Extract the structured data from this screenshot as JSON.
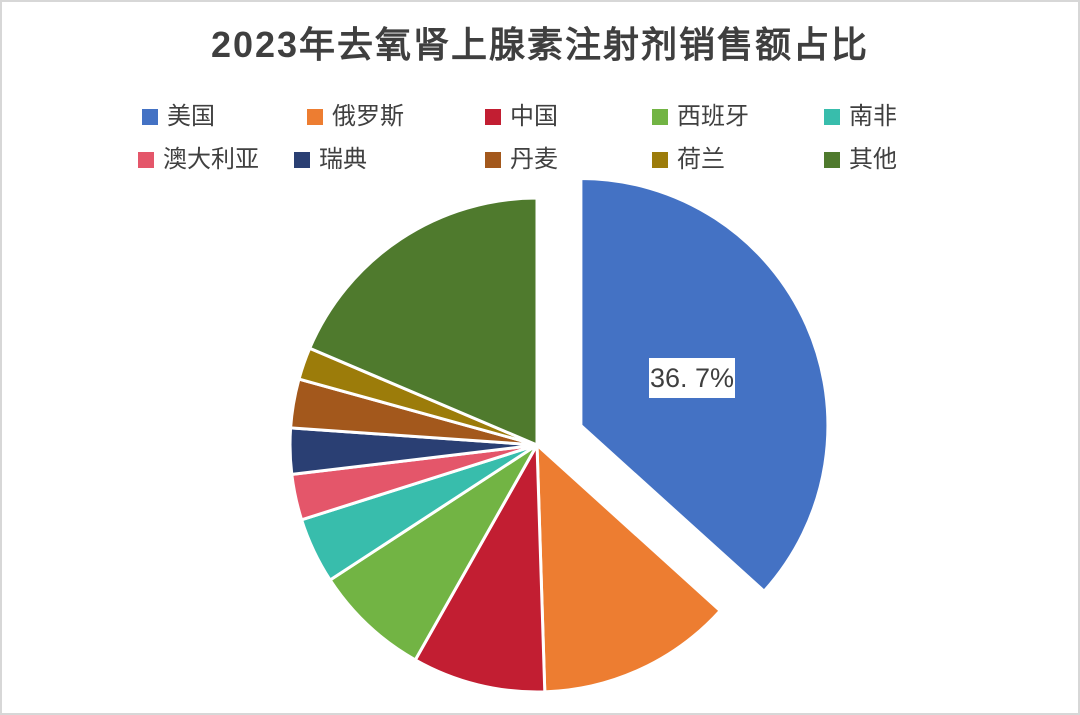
{
  "chart_data": {
    "type": "pie",
    "title": "2023年去氧肾上腺素注射剂销售额占比",
    "labels": [
      "美国",
      "俄罗斯",
      "中国",
      "西班牙",
      "南非",
      "澳大利亚",
      "瑞典",
      "丹麦",
      "荷兰",
      "其他"
    ],
    "values": [
      36.7,
      12.8,
      8.7,
      7.6,
      4.3,
      3.0,
      3.0,
      3.2,
      2.1,
      18.6
    ],
    "unit": "%",
    "colors": [
      "#4472C4",
      "#ED7D31",
      "#C21E32",
      "#72B444",
      "#38BDAC",
      "#E4566A",
      "#2A3F73",
      "#A3581C",
      "#9C7C0A",
      "#4F7A2D"
    ],
    "exploded_index": 0,
    "exploded_label": "美国",
    "data_labels": {
      "text": "36. 7%",
      "value": 36.7,
      "series": "美国"
    },
    "legend_position": "top",
    "legend_rows": [
      [
        "美国",
        "俄罗斯",
        "中国",
        "西班牙",
        "南非"
      ],
      [
        "澳大利亚",
        "瑞典",
        "丹麦",
        "荷兰",
        "其他"
      ]
    ],
    "start_angle_deg": 0,
    "direction": "clockwise"
  }
}
